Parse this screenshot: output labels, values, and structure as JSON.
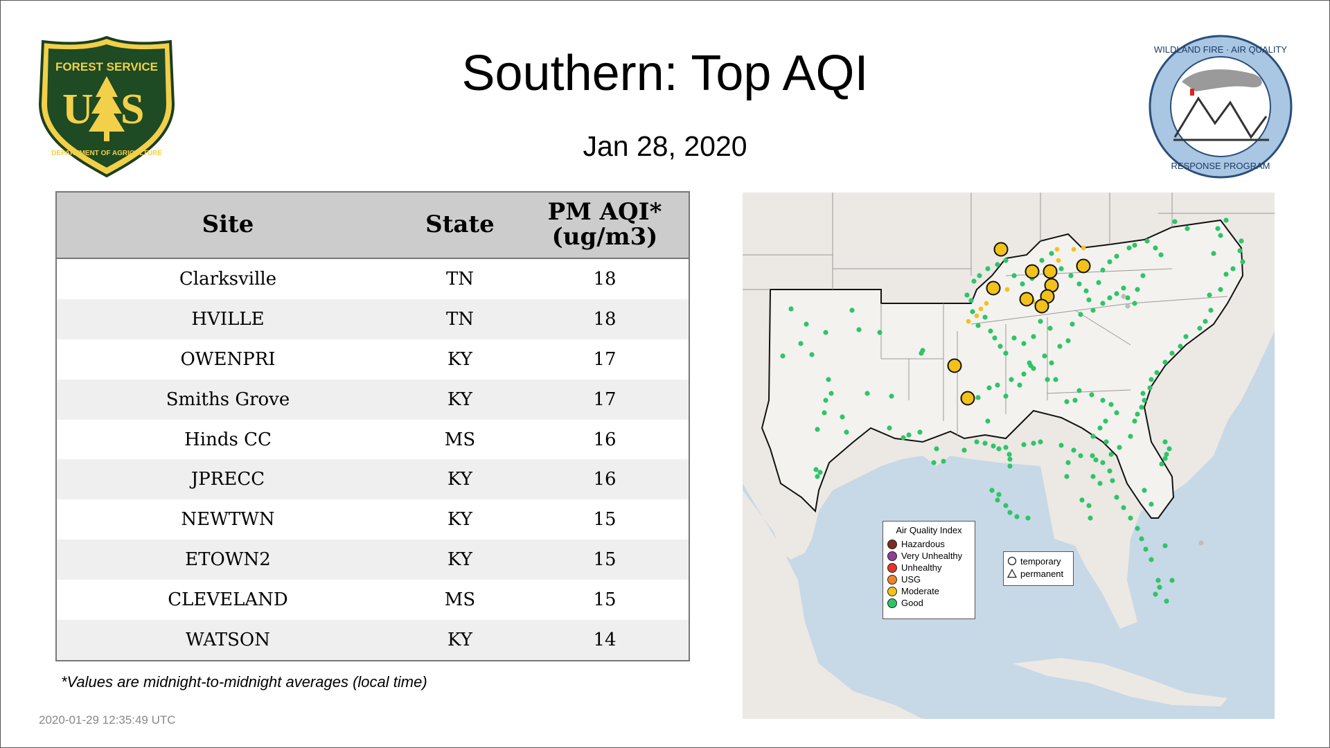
{
  "title": "Southern: Top AQI",
  "date": "Jan 28, 2020",
  "logos": {
    "forest_service": {
      "top_text": "FOREST SERVICE",
      "letters": "US",
      "bottom_text": "DEPARTMENT OF AGRICULTURE"
    },
    "wildland_fire": {
      "top_text": "WILDLAND FIRE · AIR QUALITY",
      "bottom_text": "RESPONSE PROGRAM"
    }
  },
  "table": {
    "headers": {
      "site": "Site",
      "state": "State",
      "pm_line1": "PM AQI*",
      "pm_line2": "(ug/m3)"
    },
    "rows": [
      {
        "site": "Clarksville",
        "state": "TN",
        "aqi": "18"
      },
      {
        "site": "HVILLE",
        "state": "TN",
        "aqi": "18"
      },
      {
        "site": "OWENPRI",
        "state": "KY",
        "aqi": "17"
      },
      {
        "site": "Smiths Grove",
        "state": "KY",
        "aqi": "17"
      },
      {
        "site": "Hinds CC",
        "state": "MS",
        "aqi": "16"
      },
      {
        "site": "JPRECC",
        "state": "KY",
        "aqi": "16"
      },
      {
        "site": "NEWTWN",
        "state": "KY",
        "aqi": "15"
      },
      {
        "site": "ETOWN2",
        "state": "KY",
        "aqi": "15"
      },
      {
        "site": "CLEVELAND",
        "state": "MS",
        "aqi": "15"
      },
      {
        "site": "WATSON",
        "state": "KY",
        "aqi": "14"
      }
    ]
  },
  "footnote": "*Values are midnight-to-midnight averages (local time)",
  "timestamp": "2020-01-29 12:35:49 UTC",
  "legend": {
    "title": "Air Quality Index",
    "items": [
      {
        "label": "Hazardous",
        "color": "#7e2b24"
      },
      {
        "label": "Very Unhealthy",
        "color": "#8f3f97"
      },
      {
        "label": "Unhealthy",
        "color": "#e8322c"
      },
      {
        "label": "USG",
        "color": "#f0832a"
      },
      {
        "label": "Moderate",
        "color": "#f2c21b"
      },
      {
        "label": "Good",
        "color": "#2ec46a"
      }
    ],
    "types": [
      {
        "label": "temporary",
        "shape": "circle"
      },
      {
        "label": "permanent",
        "shape": "triangle"
      }
    ]
  },
  "colors": {
    "good": "#2ec46a",
    "moderate": "#f2c21b",
    "grey_site": "#bdbdbd",
    "water": "#c7d8e6",
    "land": "#ece8e4",
    "region_land": "#f4f2ef"
  }
}
